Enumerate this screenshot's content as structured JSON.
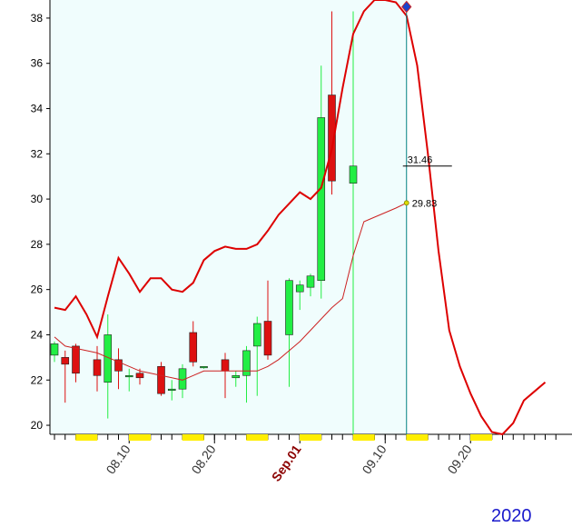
{
  "chart_data": {
    "type": "candlestick",
    "colors": {
      "up": "#22ee44",
      "down": "#dd1111",
      "upper_band": "#dd0000",
      "ma_line": "#cc2222",
      "plot_background": "#f0fdfd",
      "highlight_marker": "#ffee00",
      "cursor_line": "#008080",
      "diamond": "#1a44cc"
    },
    "y_axis": {
      "min": 19.6,
      "max": 38.8,
      "ticks": [
        20,
        22,
        24,
        26,
        28,
        30,
        32,
        34,
        36,
        38
      ]
    },
    "x_axis": {
      "labels": [
        {
          "text": "08.10",
          "index": 7,
          "major": false
        },
        {
          "text": "08.20",
          "index": 15,
          "major": false
        },
        {
          "text": "Sep.01",
          "index": 23,
          "major": true
        },
        {
          "text": "09.10",
          "index": 31,
          "major": false
        },
        {
          "text": "09.20",
          "index": 39,
          "major": false
        }
      ],
      "highlighted_ticks": [
        3,
        8,
        13,
        19,
        24,
        29,
        34,
        40
      ]
    },
    "candles": [
      {
        "open": 23.1,
        "high": 23.7,
        "low": 22.8,
        "close": 23.6
      },
      {
        "open": 23.0,
        "high": 23.3,
        "low": 21.0,
        "close": 22.7
      },
      {
        "open": 23.5,
        "high": 23.6,
        "low": 21.9,
        "close": 22.3
      },
      null,
      {
        "open": 22.9,
        "high": 23.5,
        "low": 21.5,
        "close": 22.2
      },
      {
        "open": 21.9,
        "high": 24.9,
        "low": 20.3,
        "close": 24.0
      },
      {
        "open": 22.9,
        "high": 23.4,
        "low": 21.6,
        "close": 22.4
      },
      {
        "open": 22.2,
        "high": 22.5,
        "low": 21.5,
        "close": 22.2
      },
      {
        "open": 22.3,
        "high": 22.5,
        "low": 21.8,
        "close": 22.1
      },
      null,
      {
        "open": 22.6,
        "high": 22.8,
        "low": 21.3,
        "close": 21.4
      },
      {
        "open": 21.6,
        "high": 22.0,
        "low": 21.1,
        "close": 21.6
      },
      {
        "open": 21.6,
        "high": 22.7,
        "low": 21.2,
        "close": 22.5
      },
      {
        "open": 24.1,
        "high": 24.6,
        "low": 22.6,
        "close": 22.8
      },
      {
        "open": 22.6,
        "high": 22.6,
        "low": 22.5,
        "close": 22.6
      },
      null,
      {
        "open": 22.9,
        "high": 23.2,
        "low": 21.2,
        "close": 22.4
      },
      {
        "open": 22.1,
        "high": 22.4,
        "low": 21.7,
        "close": 22.2
      },
      {
        "open": 22.2,
        "high": 23.5,
        "low": 21.0,
        "close": 23.3
      },
      {
        "open": 23.5,
        "high": 24.8,
        "low": 21.3,
        "close": 24.5
      },
      {
        "open": 24.6,
        "high": 26.4,
        "low": 22.9,
        "close": 23.1
      },
      null,
      {
        "open": 24.0,
        "high": 26.5,
        "low": 21.7,
        "close": 26.4
      },
      {
        "open": 25.9,
        "high": 26.4,
        "low": 25.1,
        "close": 26.2
      },
      {
        "open": 26.1,
        "high": 26.7,
        "low": 25.7,
        "close": 26.6
      },
      {
        "open": 26.4,
        "high": 35.9,
        "low": 25.6,
        "close": 33.6
      },
      {
        "open": 34.6,
        "high": 38.3,
        "low": 30.2,
        "close": 30.8
      },
      null,
      {
        "open": 30.7,
        "high": 38.3,
        "low": 19.6,
        "close": 31.46
      }
    ],
    "upper_band": [
      [
        0,
        25.2
      ],
      [
        1,
        25.1
      ],
      [
        2,
        25.7
      ],
      [
        3,
        24.9
      ],
      [
        4,
        23.9
      ],
      [
        5,
        25.7
      ],
      [
        6,
        27.4
      ],
      [
        7,
        26.7
      ],
      [
        8,
        25.9
      ],
      [
        9,
        26.5
      ],
      [
        10,
        26.5
      ],
      [
        11,
        26.0
      ],
      [
        12,
        25.9
      ],
      [
        13,
        26.3
      ],
      [
        14,
        27.3
      ],
      [
        15,
        27.7
      ],
      [
        16,
        27.9
      ],
      [
        17,
        27.8
      ],
      [
        18,
        27.8
      ],
      [
        19,
        28.0
      ],
      [
        20,
        28.6
      ],
      [
        21,
        29.3
      ],
      [
        22,
        29.8
      ],
      [
        23,
        30.3
      ],
      [
        24,
        30.0
      ],
      [
        25,
        30.5
      ],
      [
        26,
        32.2
      ],
      [
        27,
        34.9
      ],
      [
        28,
        37.3
      ],
      [
        29,
        38.3
      ],
      [
        30,
        38.8
      ],
      [
        31,
        38.8
      ],
      [
        32,
        38.7
      ],
      [
        33,
        38.1
      ],
      [
        34,
        35.9
      ],
      [
        35,
        32.0
      ],
      [
        36,
        27.7
      ],
      [
        37,
        24.2
      ],
      [
        38,
        22.6
      ],
      [
        39,
        21.4
      ],
      [
        40,
        20.4
      ],
      [
        41,
        19.7
      ],
      [
        42,
        19.6
      ],
      [
        43,
        20.1
      ],
      [
        44,
        21.1
      ],
      [
        45,
        21.5
      ],
      [
        46,
        21.9
      ]
    ],
    "moving_average": [
      [
        0,
        23.9
      ],
      [
        1,
        23.5
      ],
      [
        2,
        23.4
      ],
      [
        3,
        23.3
      ],
      [
        4,
        23.2
      ],
      [
        5,
        23.0
      ],
      [
        6,
        22.8
      ],
      [
        7,
        22.6
      ],
      [
        8,
        22.4
      ],
      [
        9,
        22.3
      ],
      [
        10,
        22.2
      ],
      [
        11,
        22.1
      ],
      [
        12,
        22.0
      ],
      [
        13,
        22.2
      ],
      [
        14,
        22.4
      ],
      [
        15,
        22.4
      ],
      [
        16,
        22.4
      ],
      [
        17,
        22.4
      ],
      [
        18,
        22.4
      ],
      [
        19,
        22.4
      ],
      [
        20,
        22.6
      ],
      [
        21,
        22.9
      ],
      [
        22,
        23.3
      ],
      [
        23,
        23.7
      ],
      [
        24,
        24.2
      ],
      [
        25,
        24.7
      ],
      [
        26,
        25.2
      ],
      [
        27,
        25.6
      ],
      [
        28,
        27.5
      ],
      [
        29,
        29.0
      ],
      [
        30,
        29.2
      ],
      [
        31,
        29.4
      ],
      [
        32,
        29.6
      ],
      [
        33,
        29.83
      ]
    ],
    "annotations": {
      "last_close": "31.46",
      "ma_value": "29.83",
      "cursor_index": 33,
      "diamond_value": 38.5
    },
    "year": "2020"
  }
}
